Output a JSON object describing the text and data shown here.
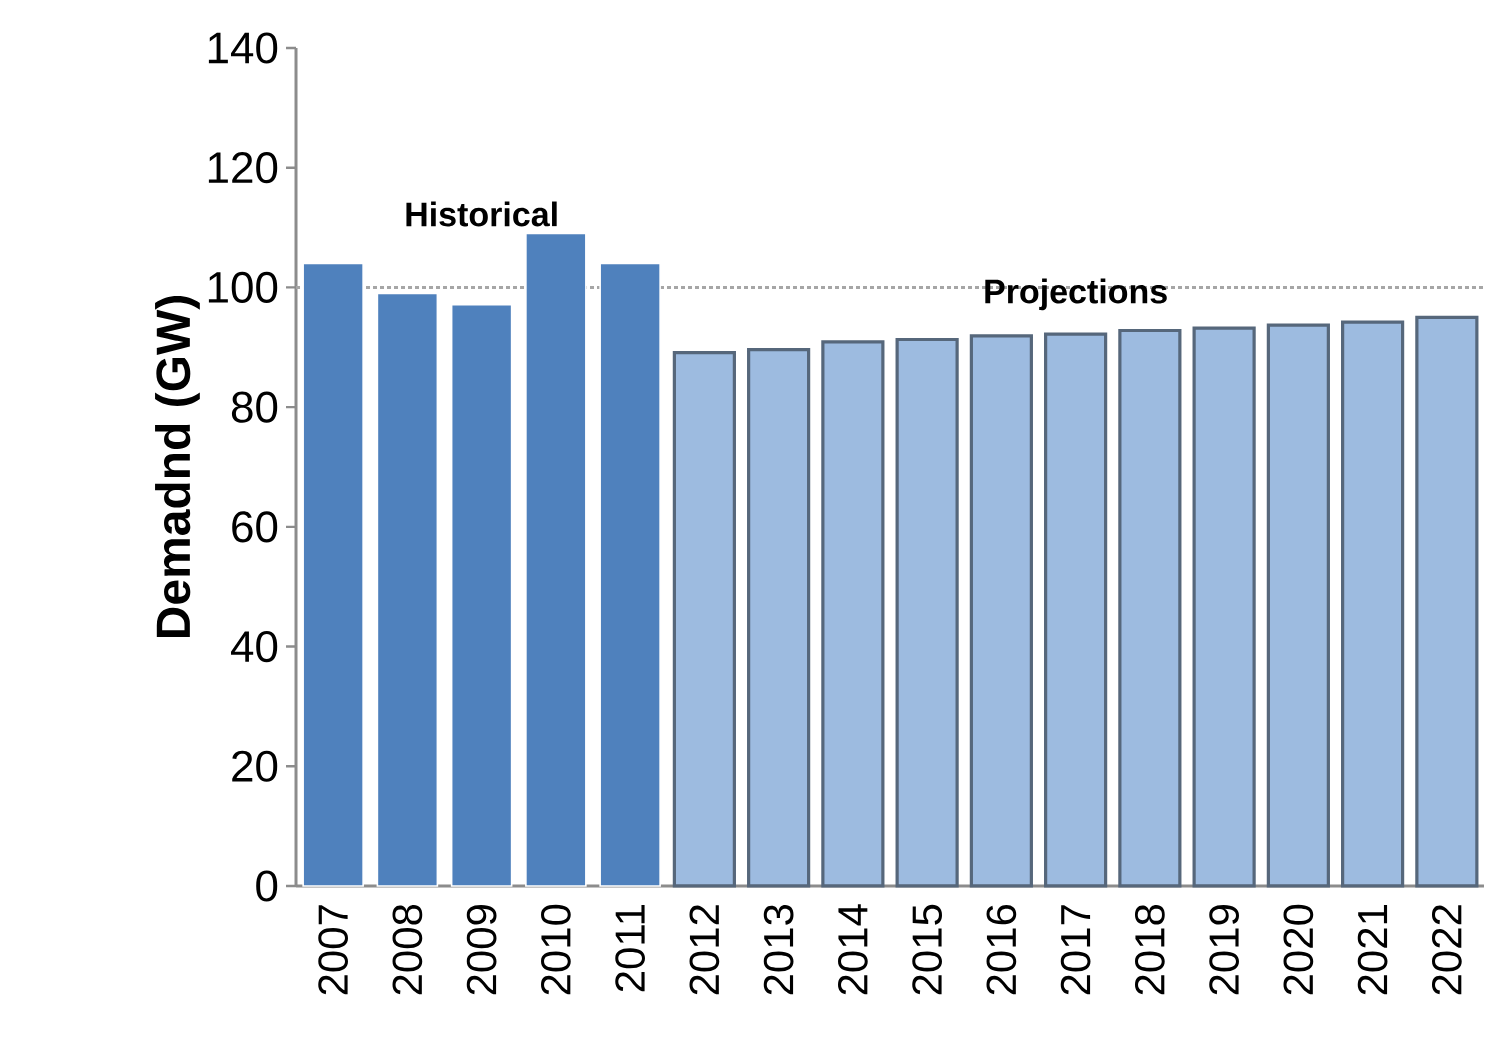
{
  "chart_data": {
    "type": "bar",
    "ylabel": "Demadnd (GW)",
    "categories": [
      "2007",
      "2008",
      "2009",
      "2010",
      "2011",
      "2012",
      "2013",
      "2014",
      "2015",
      "2016",
      "2017",
      "2018",
      "2019",
      "2020",
      "2021",
      "2022"
    ],
    "series": [
      {
        "name": "Historical",
        "color": "#4f81bd",
        "values": [
          104,
          99,
          97.1,
          109,
          104,
          null,
          null,
          null,
          null,
          null,
          null,
          null,
          null,
          null,
          null,
          null
        ]
      },
      {
        "name": "Projections",
        "color": "#9dbbe0",
        "values": [
          null,
          null,
          null,
          null,
          null,
          89.1,
          89.6,
          90.9,
          91.3,
          91.9,
          92.2,
          92.8,
          93.2,
          93.7,
          94.2,
          95
        ]
      }
    ],
    "ylim": [
      0,
      140
    ],
    "yticks": [
      0,
      20,
      40,
      60,
      80,
      100,
      120,
      140
    ],
    "ref_lines": [
      {
        "axis": "y",
        "value": 100,
        "color": "#a6a6a6",
        "line_style": "dotted"
      }
    ]
  }
}
